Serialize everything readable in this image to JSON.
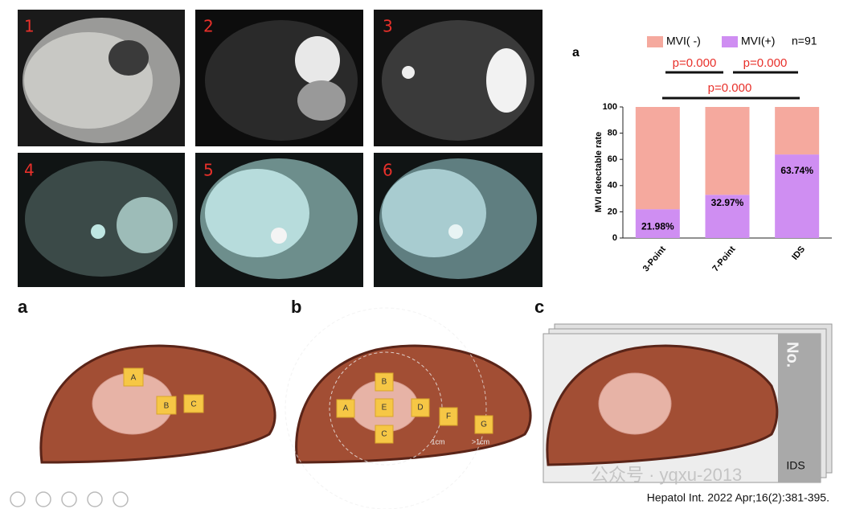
{
  "images": [
    "1",
    "2",
    "3",
    "4",
    "5",
    "6"
  ],
  "chart_data": {
    "type": "stacked_bar",
    "panel_label": "a",
    "y_label": "MVI detectable rate",
    "categories": [
      "3-Point",
      "7-Point",
      "IDS"
    ],
    "series": [
      {
        "name": "MVI( -)",
        "color": "#f5a99e",
        "values": [
          78.02,
          67.03,
          36.26
        ]
      },
      {
        "name": "MVI(+)",
        "color": "#cf8ef2",
        "values": [
          21.98,
          32.97,
          63.74
        ],
        "value_labels": [
          "21.98%",
          "32.97%",
          "63.74%"
        ]
      }
    ],
    "annotation": "n=91",
    "significance": [
      "p=0.000",
      "p=0.000",
      "p=0.000"
    ],
    "ylim": [
      0,
      100
    ],
    "yticks": [
      0,
      20,
      40,
      60,
      80,
      100
    ]
  },
  "diagrams": [
    {
      "label": "a",
      "points": [
        "A",
        "B",
        "C"
      ]
    },
    {
      "label": "b",
      "points": [
        "A",
        "B",
        "E",
        "D",
        "C",
        "F",
        "G"
      ],
      "distances": [
        "1cm",
        ">1cm"
      ]
    },
    {
      "label": "c",
      "strip_label": "No.",
      "caption": "IDS"
    }
  ],
  "watermark": "公众号 · yqxu-2013",
  "citation": "Hepatol Int. 2022 Apr;16(2):381-395."
}
